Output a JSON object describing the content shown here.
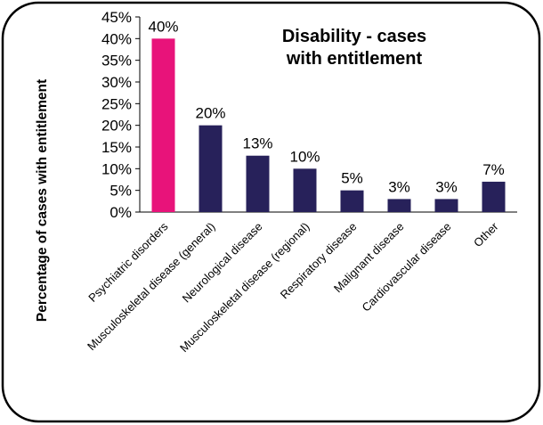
{
  "chart_data": {
    "type": "bar",
    "title": "Disability - cases\nwith entitlement",
    "xlabel": "",
    "ylabel": "Percentage of cases with entitlement",
    "categories": [
      "Psychiatric disorders",
      "Musculoskeletal disease (general)",
      "Neurological disease",
      "Musculoskeletal disease (regional)",
      "Respiratory disease",
      "Malignant disease",
      "Cardiovascular disease",
      "Other"
    ],
    "values": [
      40,
      20,
      13,
      10,
      5,
      3,
      3,
      7
    ],
    "data_labels": [
      "40%",
      "20%",
      "13%",
      "10%",
      "5%",
      "3%",
      "3%",
      "7%"
    ],
    "ylim": [
      0,
      45
    ],
    "yticks": [
      0,
      5,
      10,
      15,
      20,
      25,
      30,
      35,
      40,
      45
    ],
    "ytick_labels": [
      "0%",
      "5%",
      "10%",
      "15%",
      "20%",
      "25%",
      "30%",
      "35%",
      "40%",
      "45%"
    ],
    "grid": false,
    "legend": "none",
    "colors": {
      "highlight": "#e8137a",
      "default": "#27215a",
      "border": "#000000"
    },
    "highlight_index": 0
  }
}
